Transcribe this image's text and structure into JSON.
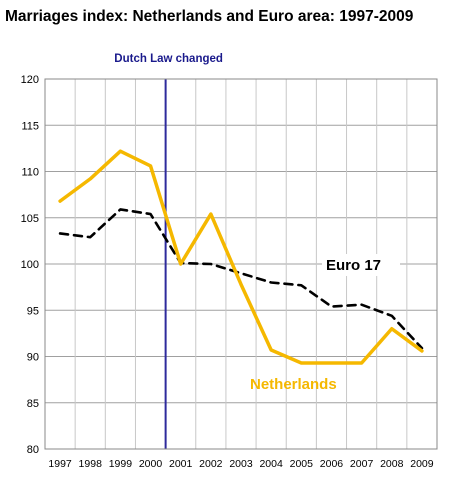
{
  "chart_data": {
    "type": "line",
    "title": "Marriages index: Netherlands and Euro area: 1997-2009",
    "x": [
      "1997",
      "1998",
      "1999",
      "2000",
      "2001",
      "2002",
      "2003",
      "2004",
      "2005",
      "2006",
      "2007",
      "2008",
      "2009"
    ],
    "ylim": [
      80,
      120
    ],
    "yticks": [
      "80",
      "85",
      "90",
      "95",
      "100",
      "105",
      "110",
      "115",
      "120"
    ],
    "grid": true,
    "series": [
      {
        "name": "Netherlands",
        "color": "#f5b800",
        "dash": "solid",
        "values": [
          106.8,
          109.2,
          112.2,
          110.6,
          100.0,
          105.4,
          97.8,
          90.7,
          89.3,
          89.3,
          89.3,
          93.0,
          90.6
        ]
      },
      {
        "name": "Euro 17",
        "color": "#000000",
        "dash": "dashed",
        "values": [
          103.3,
          102.9,
          105.9,
          105.4,
          100.1,
          100.0,
          99.0,
          98.0,
          97.7,
          95.4,
          95.6,
          94.4,
          90.9
        ]
      }
    ],
    "annotation": {
      "text": "Dutch Law changed",
      "x": "2001",
      "color": "#2e2a9c"
    }
  }
}
